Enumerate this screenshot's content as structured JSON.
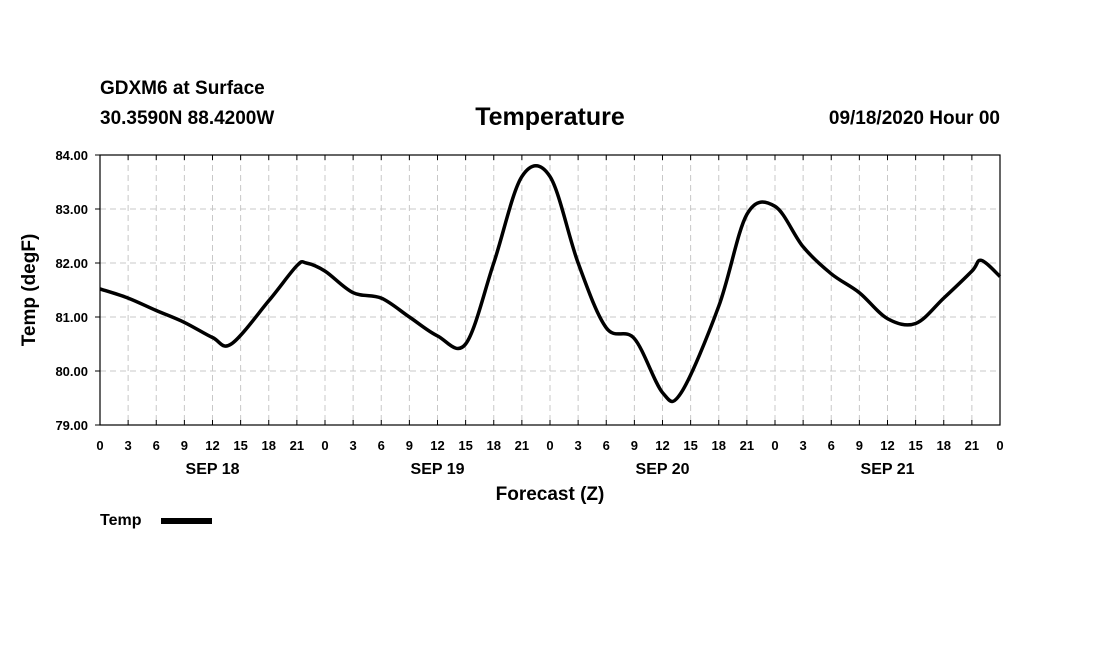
{
  "header": {
    "model": "GDXM6 at Surface",
    "location": "30.3590N 88.4200W",
    "title": "Temperature",
    "datetime": "09/18/2020 Hour 00"
  },
  "chart_data": {
    "type": "line",
    "title": "Temperature",
    "xlabel": "Forecast (Z)",
    "ylabel": "Temp (degF)",
    "xlim": [
      0,
      96
    ],
    "ylim": [
      79,
      84
    ],
    "grid": true,
    "x_tick_hours": [
      0,
      3,
      6,
      9,
      12,
      15,
      18,
      21,
      24,
      27,
      30,
      33,
      36,
      39,
      42,
      45,
      48,
      51,
      54,
      57,
      60,
      63,
      66,
      69,
      72,
      75,
      78,
      81,
      84,
      87,
      90,
      93,
      96
    ],
    "x_tick_labels": [
      "0",
      "3",
      "6",
      "9",
      "12",
      "15",
      "18",
      "21",
      "0",
      "3",
      "6",
      "9",
      "12",
      "15",
      "18",
      "21",
      "0",
      "3",
      "6",
      "9",
      "12",
      "15",
      "18",
      "21",
      "0",
      "3",
      "6",
      "9",
      "12",
      "15",
      "18",
      "21",
      "0"
    ],
    "y_ticks": [
      79,
      80,
      81,
      82,
      83,
      84
    ],
    "y_tick_labels": [
      "79.00",
      "80.00",
      "81.00",
      "82.00",
      "83.00",
      "84.00"
    ],
    "day_labels": [
      {
        "label": "SEP 18",
        "hour": 12
      },
      {
        "label": "SEP 19",
        "hour": 36
      },
      {
        "label": "SEP 20",
        "hour": 60
      },
      {
        "label": "SEP 21",
        "hour": 84
      }
    ],
    "legend": [
      {
        "name": "Temp",
        "color": "#000000"
      }
    ],
    "legend_position": "bottom-left",
    "series": [
      {
        "name": "Temp",
        "color": "#000000",
        "x": [
          0,
          3,
          6,
          9,
          12,
          14,
          18,
          21,
          22,
          24,
          27,
          30,
          33,
          36,
          39,
          42,
          45,
          48,
          51,
          54,
          57,
          60,
          62,
          66,
          69,
          72,
          75,
          78,
          81,
          84,
          87,
          90,
          93,
          94,
          96
        ],
        "values": [
          81.52,
          81.35,
          81.12,
          80.9,
          80.62,
          80.5,
          81.3,
          81.95,
          82.0,
          81.85,
          81.45,
          81.35,
          81.0,
          80.65,
          80.5,
          82.0,
          83.6,
          83.6,
          82.0,
          80.8,
          80.6,
          79.6,
          79.6,
          81.2,
          82.9,
          83.05,
          82.3,
          81.8,
          81.45,
          80.97,
          80.88,
          81.35,
          81.85,
          82.05,
          81.75
        ]
      }
    ]
  }
}
